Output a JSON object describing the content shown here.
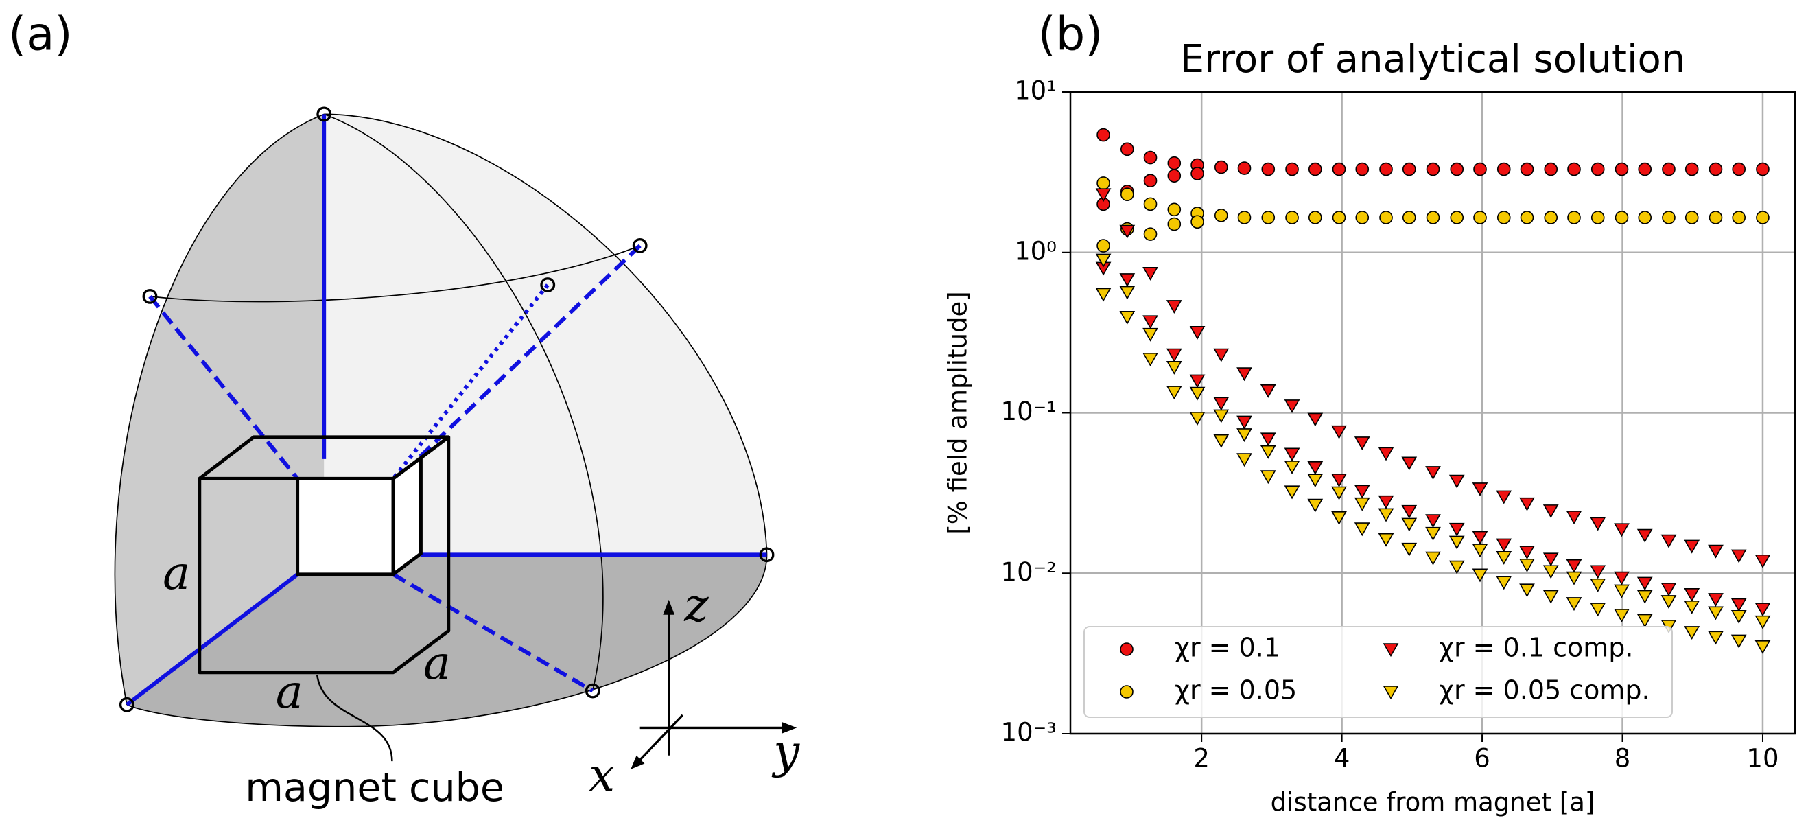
{
  "diagram": {
    "panel_label": "(a)",
    "edge_labels": [
      "a",
      "a",
      "a"
    ],
    "caption": "magnet cube",
    "axes": [
      "x",
      "y",
      "z"
    ]
  },
  "chart_data": {
    "type": "scatter",
    "panel_label": "(b)",
    "title": "Error of analytical solution",
    "xlabel": "distance from magnet [a]",
    "ylabel": "[% field amplitude]",
    "xlim": [
      0.13,
      10.46
    ],
    "ylim": [
      0.001,
      10
    ],
    "log_y": true,
    "grid": true,
    "legend": "lower left",
    "legend_columns": 2,
    "xticks": [
      2,
      4,
      6,
      8,
      10
    ],
    "yticks": [
      {
        "value": 0.001,
        "label": "10⁻³"
      },
      {
        "value": 0.01,
        "label": "10⁻²"
      },
      {
        "value": 0.1,
        "label": "10⁻¹"
      },
      {
        "value": 1,
        "label": "10⁰"
      },
      {
        "value": 10,
        "label": "10¹"
      }
    ],
    "series": [
      {
        "name": "χr = 0.1",
        "color": "#ee1111",
        "marker": "circle",
        "x": [
          0.6,
          0.94,
          1.27,
          1.61,
          1.94,
          2.28,
          2.61,
          2.95,
          3.29,
          3.62,
          3.96,
          4.29,
          4.63,
          4.96,
          5.3,
          5.64,
          5.97,
          6.31,
          6.64,
          6.98,
          7.31,
          7.65,
          7.99,
          8.32,
          8.66,
          8.99,
          9.33,
          9.66,
          10,
          0.6,
          0.94,
          1.27,
          1.61,
          1.94
        ],
        "values": [
          5.4,
          4.4,
          3.9,
          3.6,
          3.5,
          3.4,
          3.35,
          3.3,
          3.3,
          3.3,
          3.3,
          3.3,
          3.3,
          3.3,
          3.3,
          3.3,
          3.3,
          3.3,
          3.3,
          3.3,
          3.3,
          3.3,
          3.3,
          3.3,
          3.3,
          3.3,
          3.3,
          3.3,
          3.3,
          2.0,
          2.4,
          2.8,
          3.0,
          3.1
        ]
      },
      {
        "name": "χr = 0.05",
        "color": "#f5c800",
        "marker": "circle",
        "x": [
          0.6,
          0.94,
          1.27,
          1.61,
          1.94,
          2.28,
          2.61,
          2.95,
          3.29,
          3.62,
          3.96,
          4.29,
          4.63,
          4.96,
          5.3,
          5.64,
          5.97,
          6.31,
          6.64,
          6.98,
          7.31,
          7.65,
          7.99,
          8.32,
          8.66,
          8.99,
          9.33,
          9.66,
          10,
          0.6,
          0.94,
          1.27,
          1.61,
          1.94
        ],
        "values": [
          2.7,
          2.3,
          2.0,
          1.85,
          1.75,
          1.7,
          1.65,
          1.65,
          1.65,
          1.65,
          1.65,
          1.65,
          1.65,
          1.65,
          1.65,
          1.65,
          1.65,
          1.65,
          1.65,
          1.65,
          1.65,
          1.65,
          1.65,
          1.65,
          1.65,
          1.65,
          1.65,
          1.65,
          1.65,
          1.1,
          1.4,
          1.3,
          1.5,
          1.55
        ]
      },
      {
        "name": "χr = 0.1 comp.",
        "color": "#ee1111",
        "marker": "triangle-down",
        "x": [
          0.6,
          0.94,
          1.27,
          1.61,
          1.94,
          2.28,
          2.61,
          2.95,
          3.29,
          3.62,
          3.96,
          4.29,
          4.63,
          4.96,
          5.3,
          5.64,
          5.97,
          6.31,
          6.64,
          6.98,
          7.31,
          7.65,
          7.99,
          8.32,
          8.66,
          8.99,
          9.33,
          9.66,
          10,
          0.6,
          0.94,
          1.27,
          1.61,
          1.94,
          2.28,
          2.61,
          2.95,
          3.29,
          3.62,
          3.96,
          4.29,
          4.63,
          4.96,
          5.3,
          5.64,
          5.97,
          6.31,
          6.64,
          6.98,
          7.31,
          7.65,
          7.99,
          8.32,
          8.66,
          8.99,
          9.33,
          9.66,
          10
        ],
        "values": [
          2.3,
          1.36,
          0.744,
          0.463,
          0.319,
          0.231,
          0.176,
          0.138,
          0.111,
          0.0916,
          0.0765,
          0.0652,
          0.056,
          0.0488,
          0.0427,
          0.0377,
          0.0337,
          0.0301,
          0.0272,
          0.0246,
          0.0225,
          0.0205,
          0.0188,
          0.0173,
          0.016,
          0.0148,
          0.0138,
          0.0129,
          0.012,
          0.8,
          0.68,
          0.372,
          0.231,
          0.159,
          0.115,
          0.088,
          0.069,
          0.0555,
          0.0458,
          0.0383,
          0.0326,
          0.028,
          0.0244,
          0.0214,
          0.0189,
          0.0168,
          0.0151,
          0.0136,
          0.0123,
          0.0112,
          0.0103,
          0.0094,
          0.0087,
          0.008,
          0.0074,
          0.0069,
          0.0064,
          0.006
        ]
      },
      {
        "name": "χr = 0.05 comp.",
        "color": "#f5c800",
        "marker": "triangle-down",
        "x": [
          0.6,
          0.94,
          1.27,
          1.61,
          1.94,
          2.28,
          2.61,
          2.95,
          3.29,
          3.62,
          3.96,
          4.29,
          4.63,
          4.96,
          5.3,
          5.64,
          5.97,
          6.31,
          6.64,
          6.98,
          7.31,
          7.65,
          7.99,
          8.32,
          8.66,
          8.99,
          9.33,
          9.66,
          10,
          0.6,
          0.94,
          1.27,
          1.61,
          1.94,
          2.28,
          2.61,
          2.95,
          3.29,
          3.62,
          3.96,
          4.29,
          4.63,
          4.96,
          5.3,
          5.64,
          5.97,
          6.31,
          6.64,
          6.98,
          7.31,
          7.65,
          7.99,
          8.32,
          8.66,
          8.99,
          9.33,
          9.66,
          10
        ],
        "values": [
          0.9,
          0.566,
          0.31,
          0.193,
          0.133,
          0.0962,
          0.0734,
          0.0575,
          0.0462,
          0.0382,
          0.0319,
          0.0272,
          0.0233,
          0.0203,
          0.0178,
          0.0157,
          0.014,
          0.0126,
          0.0113,
          0.0103,
          0.0094,
          0.0085,
          0.0078,
          0.0072,
          0.0067,
          0.0062,
          0.0057,
          0.0054,
          0.005,
          0.55,
          0.396,
          0.217,
          0.135,
          0.093,
          0.0673,
          0.0514,
          0.0402,
          0.0323,
          0.0267,
          0.0223,
          0.019,
          0.0163,
          0.0142,
          0.0125,
          0.011,
          0.0098,
          0.0088,
          0.0079,
          0.0072,
          0.0065,
          0.006,
          0.0055,
          0.0051,
          0.0047,
          0.0043,
          0.004,
          0.0038,
          0.0035
        ]
      }
    ]
  }
}
